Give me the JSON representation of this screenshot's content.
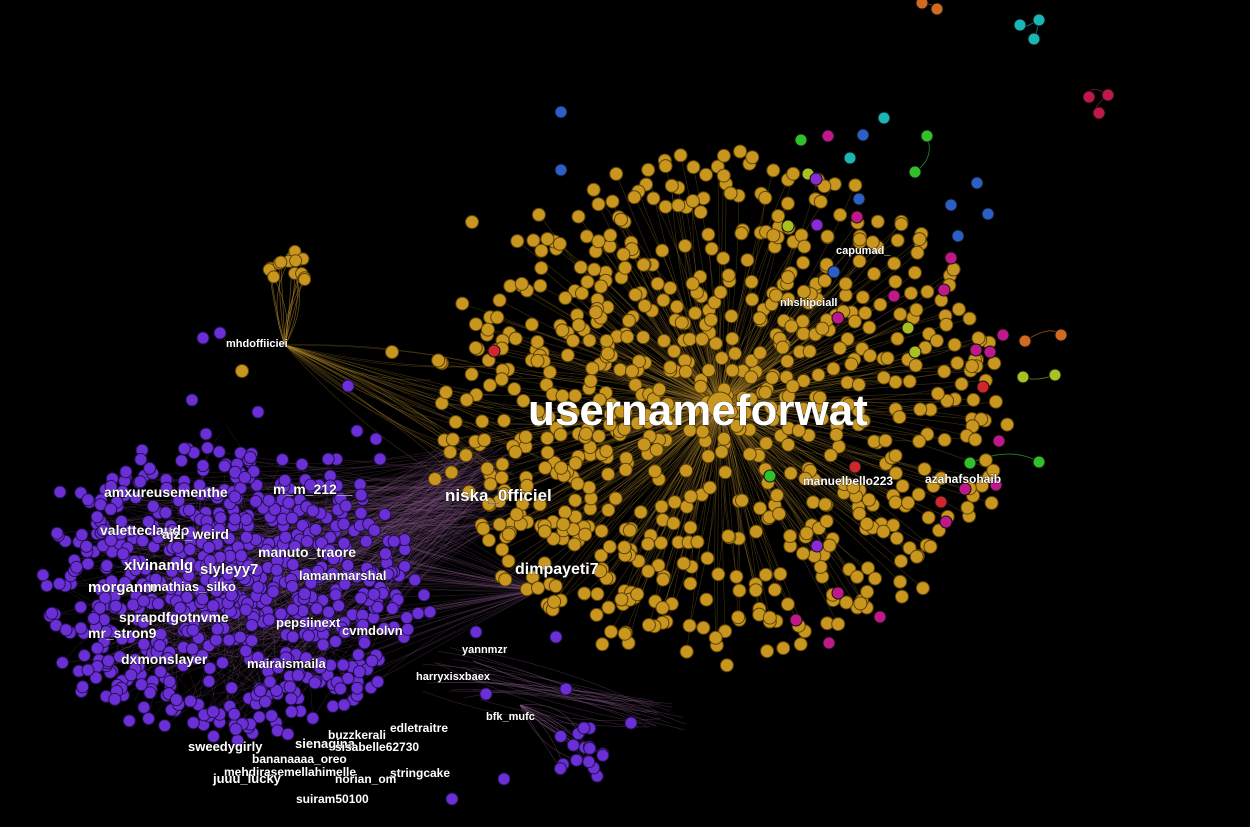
{
  "graph": {
    "background": "#000000",
    "colors": {
      "gold": "#c9961f",
      "purple": "#6b2fd6",
      "edge_gold": "#b58a2a",
      "edge_purple": "#8a5a8c",
      "red": "#d0262e",
      "magenta": "#c0188a",
      "blue": "#2a5fc8",
      "cyan": "#1ab5b5",
      "green": "#2fc02a",
      "lime": "#a8c020",
      "orange": "#d06a20",
      "crimson": "#c01848"
    },
    "labels": {
      "hub": "usernameforwat",
      "niska": "niska_0fficiel",
      "dimpayeti": "dimpayeti7",
      "mhdoffiiciei": "mhdoffiiciei",
      "capumad": "capumad_",
      "nhshipciall": "nhshipciall",
      "manuelbello": "manuelbello223",
      "azahafsohaib": "azahafsohaib",
      "amxureusementhe": "amxureusementhe",
      "m_m_212": "m_m_212__",
      "valetteclaudo": "valetteclaudo",
      "ajzi_weird": "ajzi_weird",
      "manuto_traore": "manuto_traore",
      "xlvinamlg": "xlvinamlg",
      "slyleyy7": "slyleyy7",
      "lamanmarshal": "lamanmarshal",
      "morganm": "morganm",
      "mathias_silko": "mathias_silko",
      "sprapdfgotnvme": "sprapdfgotnvme",
      "pepsiinext": "pepsiinext",
      "mr_stron9": "mr_stron9",
      "cvmdolvn": "cvmdolvn",
      "dxmonslayer": "dxmonslayer",
      "mairaismaila": "mairaismaila",
      "yannmzr": "yannmzr",
      "harryxisxbaex": "harryxisxbaex",
      "bfk_mufc": "bfk_mufc",
      "edletraitre": "edletraitre",
      "buzzkerali": "buzzkerali",
      "sweedygirly": "sweedygirly",
      "sienagina": "sienagina",
      "sisabelle62730": "sisabelle62730",
      "bananaaaa_oreo": "bananaaaa_oreo",
      "mehdirasemellahimelle": "mehdirasemellahimelle",
      "juuu_lucky": "juuu_lucky",
      "norian_om": "norian_om",
      "stringcake": "stringcake",
      "suiram50100": "suiram50100"
    }
  }
}
